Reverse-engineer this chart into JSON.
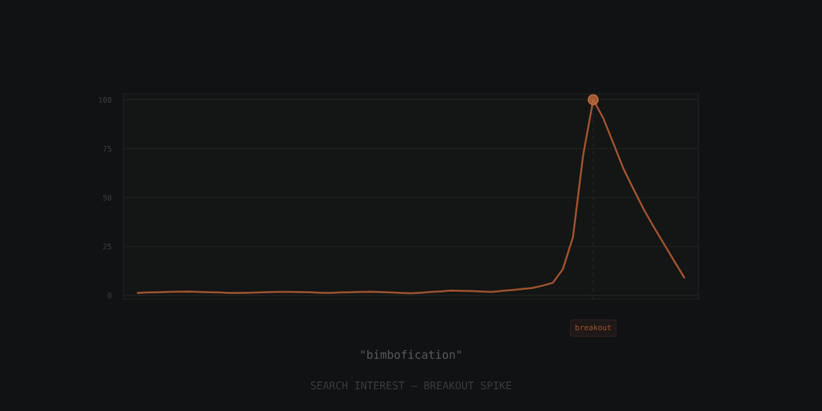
{
  "chart_data": {
    "type": "line",
    "xlabel": "\"bimbofication\"",
    "annotations": [
      "breakout",
      "SEARCH INTEREST — BREAKOUT SPIKE"
    ],
    "categories": [
      null,
      null,
      null,
      null,
      null,
      null,
      null,
      null,
      null,
      null,
      null,
      null,
      null,
      null,
      null,
      null,
      null,
      null,
      null,
      null,
      null,
      null,
      null,
      null,
      null,
      null,
      null,
      null,
      null,
      null,
      null,
      null,
      null,
      null,
      null,
      null,
      null,
      null,
      null,
      null,
      null,
      null,
      null,
      null,
      null,
      null,
      null,
      null,
      null,
      null,
      null,
      null,
      null,
      null,
      null
    ],
    "series": [
      {
        "color": "#a0532f",
        "values": [
          1.3,
          1.5,
          1.6,
          1.8,
          1.9,
          2.0,
          1.8,
          1.6,
          1.5,
          1.3,
          1.3,
          1.4,
          1.5,
          1.7,
          1.8,
          1.8,
          1.7,
          1.6,
          1.4,
          1.3,
          1.5,
          1.6,
          1.8,
          1.9,
          1.7,
          1.5,
          1.3,
          1.1,
          1.4,
          1.8,
          2.1,
          2.5,
          2.3,
          2.2,
          2.0,
          1.8,
          2.3,
          2.8,
          3.3,
          3.8,
          5.0,
          6.4,
          13.4,
          29.8,
          71.4,
          100,
          90.5,
          77.6,
          64.6,
          54.1,
          43.9,
          34.8,
          26.2,
          17.6,
          9.1
        ]
      }
    ],
    "ylim": [
      -2,
      103
    ],
    "yticks": [
      0,
      25,
      50,
      75,
      100
    ],
    "grid": "y"
  }
}
